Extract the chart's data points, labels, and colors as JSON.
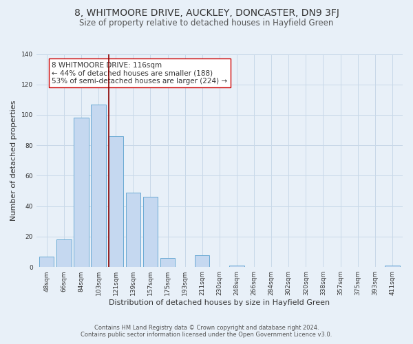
{
  "title1": "8, WHITMOORE DRIVE, AUCKLEY, DONCASTER, DN9 3FJ",
  "title2": "Size of property relative to detached houses in Hayfield Green",
  "xlabel": "Distribution of detached houses by size in Hayfield Green",
  "ylabel": "Number of detached properties",
  "bar_labels": [
    "48sqm",
    "66sqm",
    "84sqm",
    "103sqm",
    "121sqm",
    "139sqm",
    "157sqm",
    "175sqm",
    "193sqm",
    "211sqm",
    "230sqm",
    "248sqm",
    "266sqm",
    "284sqm",
    "302sqm",
    "320sqm",
    "338sqm",
    "357sqm",
    "375sqm",
    "393sqm",
    "411sqm"
  ],
  "bar_values": [
    7,
    18,
    98,
    107,
    86,
    49,
    46,
    6,
    0,
    8,
    0,
    1,
    0,
    0,
    0,
    0,
    0,
    0,
    0,
    0,
    1
  ],
  "bar_color": "#c5d8f0",
  "bar_edge_color": "#6aaad4",
  "grid_color": "#c8d8e8",
  "background_color": "#e8f0f8",
  "vline_color": "#8b0000",
  "annotation_text": "8 WHITMOORE DRIVE: 116sqm\n← 44% of detached houses are smaller (188)\n53% of semi-detached houses are larger (224) →",
  "annotation_box_color": "#ffffff",
  "annotation_box_edge": "#cc0000",
  "footer1": "Contains HM Land Registry data © Crown copyright and database right 2024.",
  "footer2": "Contains public sector information licensed under the Open Government Licence v3.0.",
  "ylim": [
    0,
    140
  ],
  "yticks": [
    0,
    20,
    40,
    60,
    80,
    100,
    120,
    140
  ],
  "title1_fontsize": 10,
  "title2_fontsize": 8.5,
  "xlabel_fontsize": 8,
  "ylabel_fontsize": 8,
  "tick_fontsize": 6.5,
  "annotation_fontsize": 7.5,
  "footer_fontsize": 6
}
